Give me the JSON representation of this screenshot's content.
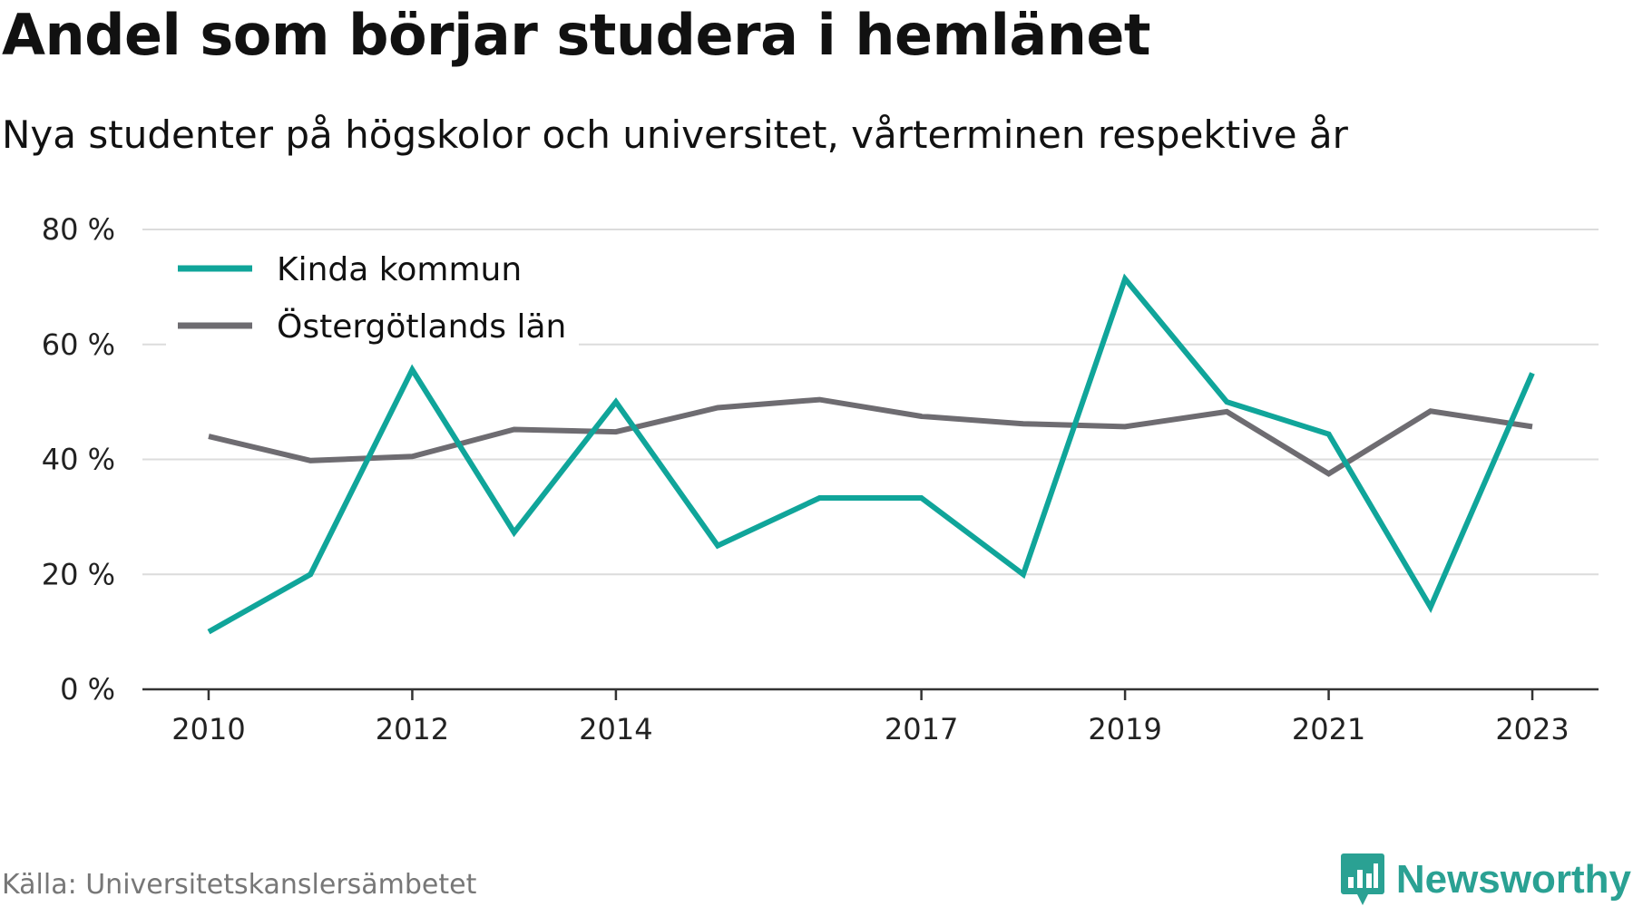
{
  "title": "Andel som börjar studera i hemlänet",
  "subtitle": "Nya studenter på högskolor och universitet, vårterminen respektive år",
  "source": "Källa: Universitetskanslersämbetet",
  "brand": {
    "name": "Newsworthy",
    "icon": "bar-chart-speech-bubble-icon",
    "color": "#2aa193"
  },
  "chart_data": {
    "type": "line",
    "x": [
      2010,
      2011,
      2012,
      2013,
      2014,
      2015,
      2016,
      2017,
      2018,
      2019,
      2020,
      2021,
      2022,
      2023
    ],
    "x_tick_labels": [
      "2010",
      "2012",
      "2014",
      "2017",
      "2019",
      "2021",
      "2023"
    ],
    "x_tick_values": [
      2010,
      2012,
      2014,
      2017,
      2019,
      2021,
      2023
    ],
    "xlim": [
      2009.35,
      2023.65
    ],
    "ylim": [
      0,
      80
    ],
    "y_ticks": [
      0,
      20,
      40,
      60,
      80
    ],
    "y_tick_labels": [
      "0 %",
      "20 %",
      "40 %",
      "60 %",
      "80 %"
    ],
    "grid": true,
    "legend_position": "top-left",
    "series": [
      {
        "name": "Kinda kommun",
        "color": "#10a59a",
        "values": [
          10,
          20,
          55.6,
          27.3,
          50,
          25,
          33.3,
          33.3,
          20,
          71.4,
          50,
          44.4,
          14.3,
          55
        ]
      },
      {
        "name": "Östergötlands län",
        "color": "#6e6c71",
        "values": [
          44,
          39.8,
          40.5,
          45.2,
          44.8,
          49,
          50.4,
          47.5,
          46.2,
          45.7,
          48.3,
          37.5,
          48.4,
          45.7
        ]
      }
    ]
  }
}
